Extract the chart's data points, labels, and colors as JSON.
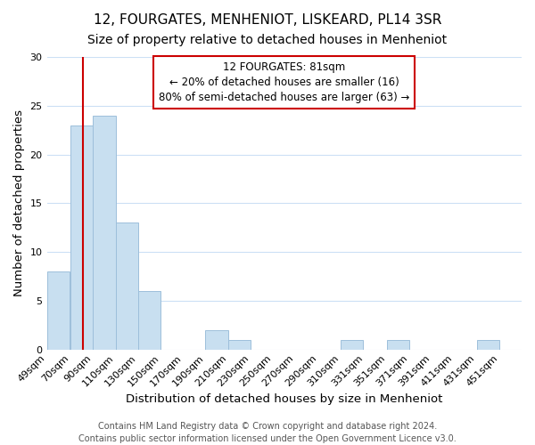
{
  "title": "12, FOURGATES, MENHENIOT, LISKEARD, PL14 3SR",
  "subtitle": "Size of property relative to detached houses in Menheniot",
  "xlabel": "Distribution of detached houses by size in Menheniot",
  "ylabel": "Number of detached properties",
  "bar_color": "#c8dff0",
  "bar_edge_color": "#9dbfdb",
  "bins": [
    "49sqm",
    "70sqm",
    "90sqm",
    "110sqm",
    "130sqm",
    "150sqm",
    "170sqm",
    "190sqm",
    "210sqm",
    "230sqm",
    "250sqm",
    "270sqm",
    "290sqm",
    "310sqm",
    "331sqm",
    "351sqm",
    "371sqm",
    "391sqm",
    "411sqm",
    "431sqm",
    "451sqm"
  ],
  "counts": [
    8,
    23,
    24,
    13,
    6,
    0,
    0,
    2,
    1,
    0,
    0,
    0,
    0,
    1,
    0,
    1,
    0,
    0,
    0,
    1,
    0
  ],
  "bin_width": 20,
  "bin_starts": [
    49,
    70,
    90,
    110,
    130,
    150,
    170,
    190,
    210,
    230,
    250,
    270,
    290,
    310,
    331,
    351,
    371,
    391,
    411,
    431,
    451
  ],
  "ylim": [
    0,
    30
  ],
  "yticks": [
    0,
    5,
    10,
    15,
    20,
    25,
    30
  ],
  "vline_x": 81,
  "vline_color": "#cc0000",
  "annotation_line1": "12 FOURGATES: 81sqm",
  "annotation_line2": "← 20% of detached houses are smaller (16)",
  "annotation_line3": "80% of semi-detached houses are larger (63) →",
  "annotation_box_color": "#ffffff",
  "annotation_box_edge": "#cc0000",
  "footer_line1": "Contains HM Land Registry data © Crown copyright and database right 2024.",
  "footer_line2": "Contains public sector information licensed under the Open Government Licence v3.0.",
  "background_color": "#ffffff",
  "grid_color": "#cce0f5",
  "title_fontsize": 11,
  "subtitle_fontsize": 10,
  "axis_label_fontsize": 9.5,
  "tick_fontsize": 8,
  "footer_fontsize": 7,
  "annotation_fontsize": 8.5
}
